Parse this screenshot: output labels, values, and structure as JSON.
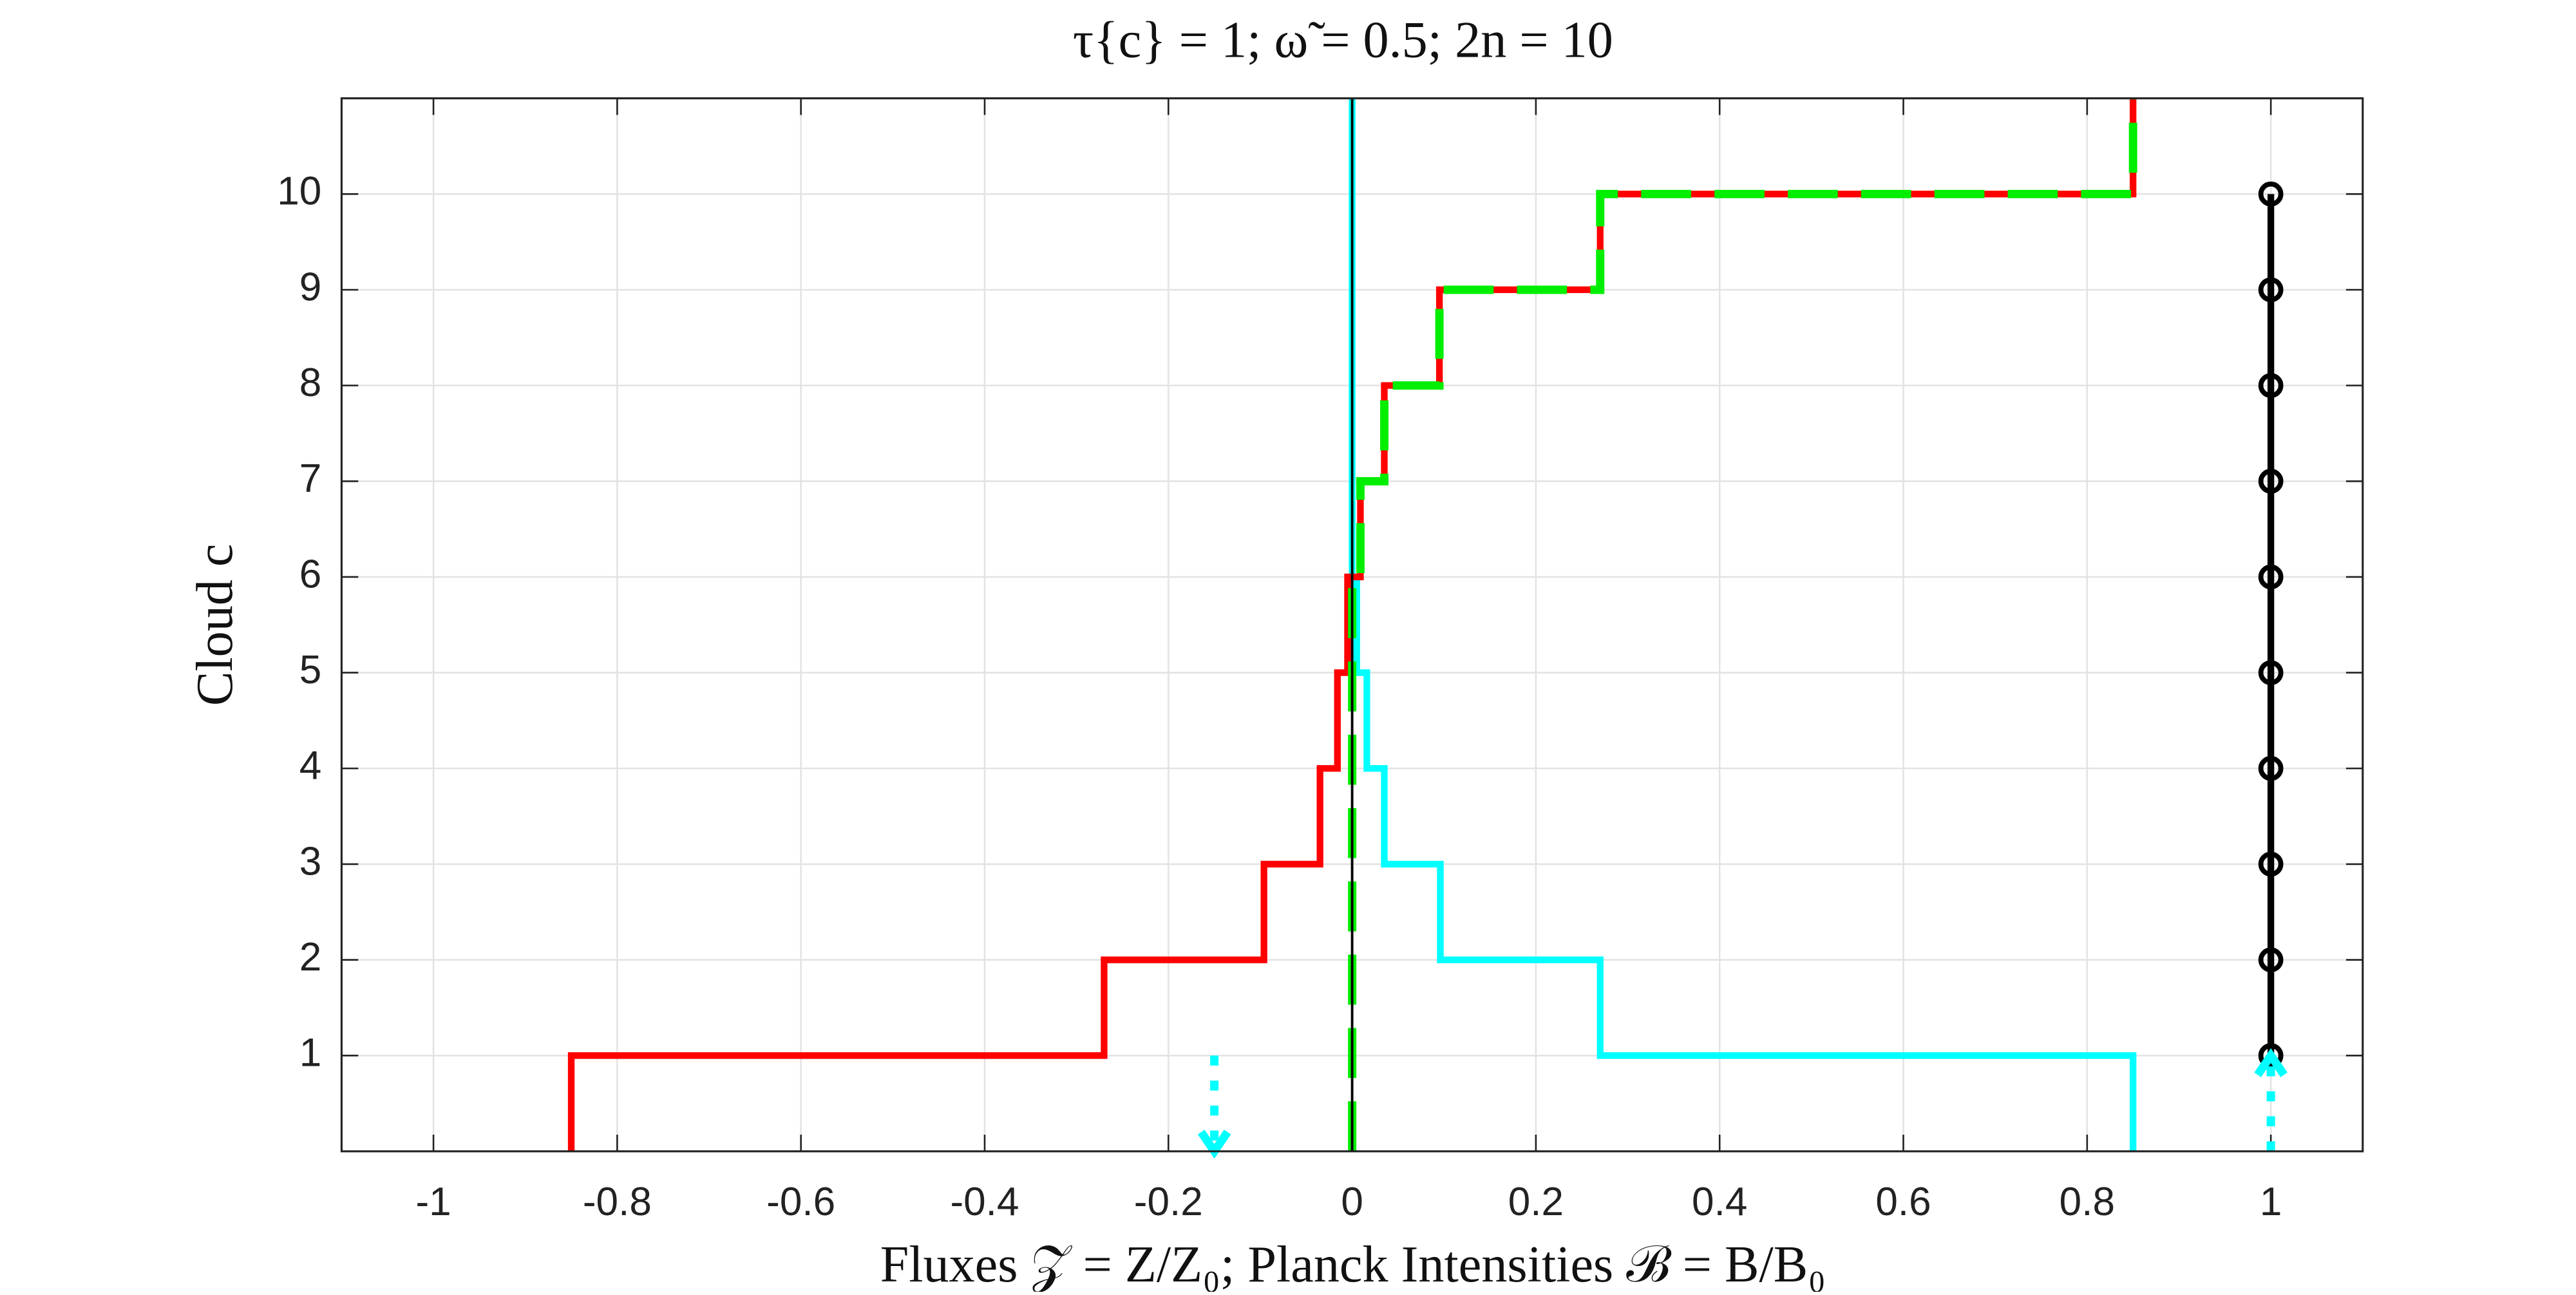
{
  "chart_data": {
    "type": "line",
    "title": "τ{c} = 1;    ω̃ = 0.5;    2n = 10",
    "x_label": "Fluxes 𝒵 = Z/Z₀;   Planck Intensities ℬ = B/B₀",
    "y_label": "Cloud c",
    "xlim": [
      -1.1,
      1.1
    ],
    "ylim": [
      0,
      11
    ],
    "xticks": [
      -1,
      -0.8,
      -0.6,
      -0.4,
      -0.2,
      0,
      0.2,
      0.4,
      0.6,
      0.8,
      1
    ],
    "yticks": [
      1,
      2,
      3,
      4,
      5,
      6,
      7,
      8,
      9,
      10
    ],
    "grid": true,
    "series": [
      {
        "color": "#00ffff",
        "width": 4,
        "dash": "solid",
        "x": [
          0.85,
          0.85,
          0.27,
          0.27,
          0.096,
          0.096,
          0.035,
          0.035,
          0.016,
          0.016,
          0.005,
          0.005,
          0,
          0
        ],
        "values": [
          0,
          1,
          1,
          2,
          2,
          3,
          3,
          4,
          4,
          5,
          5,
          6,
          6,
          11
        ]
      },
      {
        "color": "#ff0000",
        "width": 4,
        "dash": "solid",
        "x": [
          -0.85,
          -0.85,
          -0.27,
          -0.27,
          -0.096,
          -0.096,
          -0.035,
          -0.035,
          -0.016,
          -0.016,
          -0.005,
          -0.005,
          0.009,
          0.009,
          0.035,
          0.035,
          0.095,
          0.095,
          0.27,
          0.27,
          0.85,
          0.85
        ],
        "values": [
          0,
          1,
          1,
          2,
          2,
          3,
          3,
          4,
          4,
          5,
          5,
          6,
          6,
          7,
          7,
          8,
          8,
          9,
          9,
          10,
          10,
          11
        ]
      },
      {
        "color": "#00ee00",
        "width": 5,
        "dash": "dashed",
        "x": [
          0,
          0,
          0.009,
          0.009,
          0.035,
          0.035,
          0.095,
          0.095,
          0.27,
          0.27,
          0.85,
          0.85
        ],
        "values": [
          0,
          6,
          6,
          7,
          7,
          8,
          8,
          9,
          9,
          10,
          10,
          11
        ]
      },
      {
        "color": "#000000",
        "width": 1.5,
        "dash": "solid",
        "x": [
          0,
          0
        ],
        "values": [
          0,
          11
        ]
      },
      {
        "color": "#000000",
        "width": 4,
        "dash": "solid",
        "markers": true,
        "x": [
          1,
          1,
          1,
          1,
          1,
          1,
          1,
          1,
          1,
          1
        ],
        "values": [
          1,
          2,
          3,
          4,
          5,
          6,
          7,
          8,
          9,
          10
        ]
      },
      {
        "color": "#00ffff",
        "width": 5,
        "dash": "dotted",
        "arrow": "end",
        "x": [
          -0.15,
          -0.15
        ],
        "values": [
          1,
          0
        ]
      },
      {
        "color": "#00ffff",
        "width": 5,
        "dash": "dotted",
        "arrow": "end",
        "x": [
          1,
          1
        ],
        "values": [
          0,
          1
        ]
      }
    ]
  }
}
